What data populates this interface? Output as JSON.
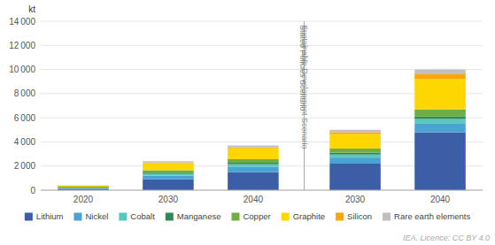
{
  "chart_data": {
    "type": "bar",
    "stacked": true,
    "grid": true,
    "legend": "bottom",
    "ylabel": "kt",
    "annotations": [
      "Stated Policies Scenario",
      "Sustainable Development Scenario",
      "IEA. Licence: CC BY 4.0"
    ],
    "categories": [
      "2020",
      "2030",
      "2040",
      "2030",
      "2040"
    ],
    "ylim": [
      0,
      14000
    ],
    "yticks": [
      0,
      {
        "value": 2000,
        "label": "2 000"
      },
      {
        "value": 4000,
        "label": "4 000"
      },
      {
        "value": 6000,
        "label": "6 000"
      },
      {
        "value": 8000,
        "label": "8 000"
      },
      {
        "value": 10000,
        "label": "10 000"
      },
      {
        "value": 12000,
        "label": "12 000"
      },
      {
        "value": 14000,
        "label": "14 000"
      }
    ],
    "series": [
      {
        "name": "Lithium",
        "color": "#3B5EA6",
        "values": [
          100,
          900,
          1500,
          2200,
          4800
        ]
      },
      {
        "name": "Nickel",
        "color": "#4BA3D4",
        "values": [
          50,
          300,
          450,
          500,
          700
        ]
      },
      {
        "name": "Cobalt",
        "color": "#5BC8C0",
        "values": [
          30,
          150,
          200,
          250,
          400
        ]
      },
      {
        "name": "Manganese",
        "color": "#2E8B57",
        "values": [
          30,
          100,
          120,
          150,
          200
        ]
      },
      {
        "name": "Copper",
        "color": "#70AD47",
        "values": [
          80,
          200,
          300,
          350,
          600
        ]
      },
      {
        "name": "Graphite",
        "color": "#FFD700",
        "values": [
          80,
          600,
          900,
          1200,
          2500
        ]
      },
      {
        "name": "Silicon",
        "color": "#FFA500",
        "values": [
          10,
          50,
          80,
          150,
          400
        ]
      },
      {
        "name": "Rare earth elements",
        "color": "#C0C0C0",
        "values": [
          20,
          100,
          150,
          200,
          400
        ]
      }
    ]
  }
}
